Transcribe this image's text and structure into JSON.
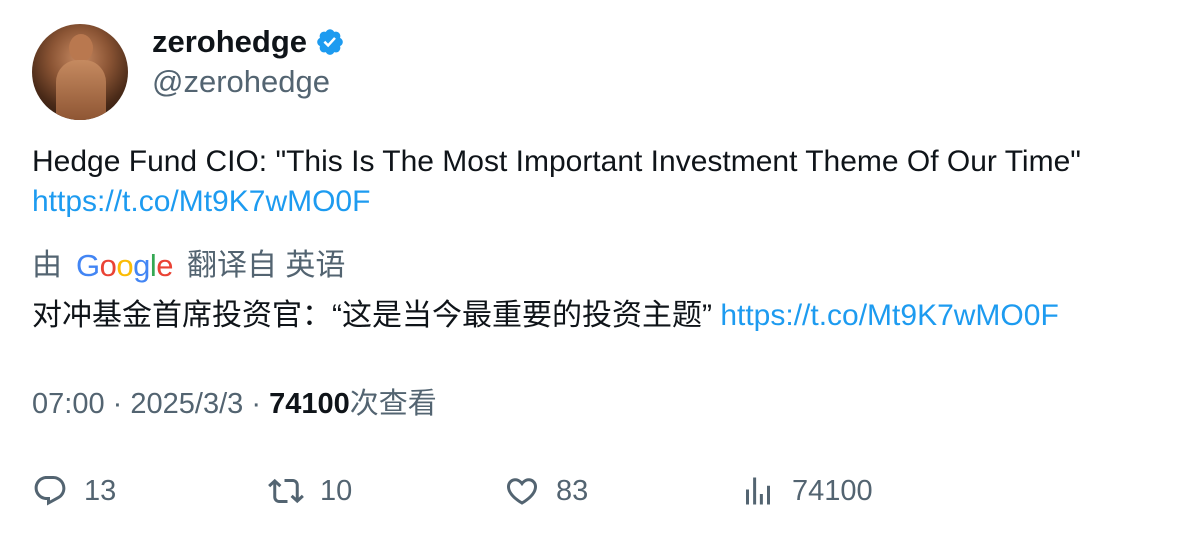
{
  "user": {
    "display_name": "zerohedge",
    "handle": "@zerohedge",
    "verified": true
  },
  "tweet": {
    "text": "Hedge Fund CIO: \"This Is The Most Important Investment Theme Of Our Time\"",
    "link": "https://t.co/Mt9K7wMO0F"
  },
  "translation": {
    "prefix": "由",
    "provider": "Google",
    "suffix": "翻译自 英语",
    "text": "对冲基金首席投资官：“这是当今最重要的投资主题”",
    "link": "https://t.co/Mt9K7wMO0F"
  },
  "meta": {
    "time": "07:00",
    "sep1": "·",
    "date": "2025/3/3",
    "sep2": "·",
    "views_count": "74100",
    "views_label": "次查看"
  },
  "actions": {
    "replies": "13",
    "retweets": "10",
    "likes": "83",
    "views": "74100"
  },
  "icons": {
    "reply": "reply-icon",
    "retweet": "retweet-icon",
    "like": "heart-icon",
    "views": "analytics-icon",
    "verified": "verified-badge-icon"
  },
  "colors": {
    "link": "#1d9bf0",
    "muted": "#536471",
    "text": "#0f1419"
  }
}
